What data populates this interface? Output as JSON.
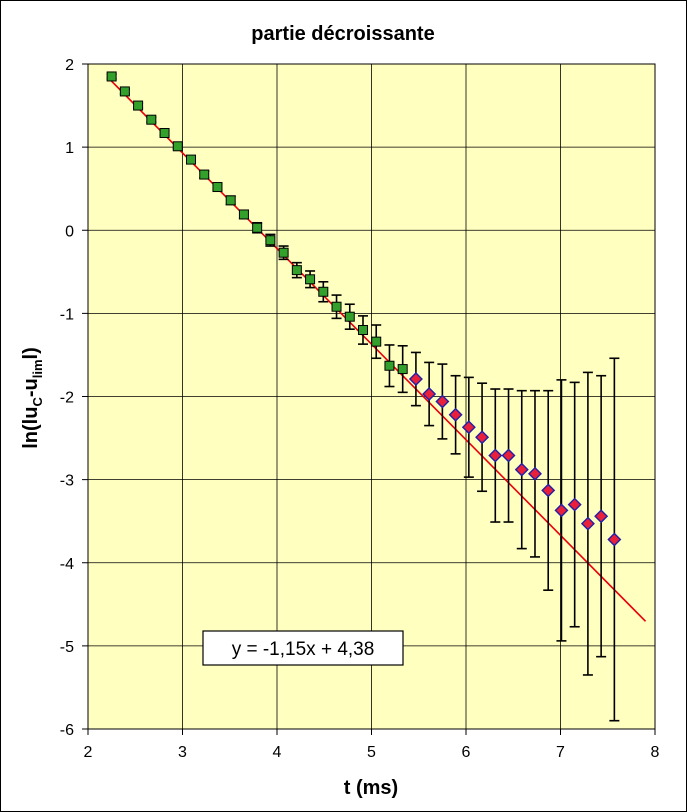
{
  "chart_data": {
    "type": "scatter",
    "title": "partie décroissante",
    "xlabel": "t  (ms)",
    "ylabel": {
      "prefix": "ln(lu",
      "sub1": "C",
      "mid": "-u",
      "sub2": "lim",
      "suffix": "l)"
    },
    "xlim": [
      2,
      8
    ],
    "ylim": [
      -6,
      2
    ],
    "xticks": [
      "2",
      "3",
      "4",
      "5",
      "6",
      "7",
      "8"
    ],
    "yticks": [
      "2",
      "1",
      "0",
      "-1",
      "-2",
      "-3",
      "-4",
      "-5",
      "-6"
    ],
    "grid": true,
    "plot_background": "#ffffc0",
    "series": [
      {
        "marker": "square",
        "color": "#33a02c",
        "points": [
          {
            "x": 2.25,
            "y": 1.85,
            "err": 0.03
          },
          {
            "x": 2.39,
            "y": 1.67,
            "err": 0.03
          },
          {
            "x": 2.53,
            "y": 1.5,
            "err": 0.03
          },
          {
            "x": 2.67,
            "y": 1.33,
            "err": 0.03
          },
          {
            "x": 2.81,
            "y": 1.17,
            "err": 0.03
          },
          {
            "x": 2.95,
            "y": 1.01,
            "err": 0.03
          },
          {
            "x": 3.09,
            "y": 0.85,
            "err": 0.04
          },
          {
            "x": 3.23,
            "y": 0.67,
            "err": 0.04
          },
          {
            "x": 3.37,
            "y": 0.52,
            "err": 0.04
          },
          {
            "x": 3.51,
            "y": 0.36,
            "err": 0.05
          },
          {
            "x": 3.65,
            "y": 0.19,
            "err": 0.05
          },
          {
            "x": 3.79,
            "y": 0.03,
            "err": 0.06
          },
          {
            "x": 3.93,
            "y": -0.12,
            "err": 0.07
          },
          {
            "x": 4.07,
            "y": -0.27,
            "err": 0.08
          },
          {
            "x": 4.21,
            "y": -0.48,
            "err": 0.09
          },
          {
            "x": 4.35,
            "y": -0.59,
            "err": 0.1
          },
          {
            "x": 4.49,
            "y": -0.74,
            "err": 0.12
          },
          {
            "x": 4.63,
            "y": -0.92,
            "err": 0.14
          },
          {
            "x": 4.77,
            "y": -1.04,
            "err": 0.15
          },
          {
            "x": 4.91,
            "y": -1.2,
            "err": 0.17
          },
          {
            "x": 5.05,
            "y": -1.34,
            "err": 0.2
          },
          {
            "x": 5.19,
            "y": -1.63,
            "err": 0.25
          },
          {
            "x": 5.33,
            "y": -1.67,
            "err": 0.28
          }
        ]
      },
      {
        "marker": "diamond",
        "color": "#e8203a",
        "points": [
          {
            "x": 5.47,
            "y": -1.79,
            "err": 0.32
          },
          {
            "x": 5.61,
            "y": -1.97,
            "err": 0.38
          },
          {
            "x": 5.75,
            "y": -2.06,
            "err": 0.45
          },
          {
            "x": 5.89,
            "y": -2.22,
            "err": 0.47
          },
          {
            "x": 6.03,
            "y": -2.37,
            "err": 0.6
          },
          {
            "x": 6.17,
            "y": -2.49,
            "err": 0.65
          },
          {
            "x": 6.31,
            "y": -2.71,
            "err": 0.8
          },
          {
            "x": 6.45,
            "y": -2.71,
            "err": 0.8
          },
          {
            "x": 6.59,
            "y": -2.88,
            "err": 0.95
          },
          {
            "x": 6.73,
            "y": -2.93,
            "err": 1.0
          },
          {
            "x": 6.87,
            "y": -3.13,
            "err": 1.2
          },
          {
            "x": 7.01,
            "y": -3.37,
            "err": 1.57
          },
          {
            "x": 7.15,
            "y": -3.3,
            "err": 1.47
          },
          {
            "x": 7.29,
            "y": -3.53,
            "err": 1.82
          },
          {
            "x": 7.43,
            "y": -3.44,
            "err": 1.69
          },
          {
            "x": 7.57,
            "y": -3.72,
            "err": 2.18
          }
        ]
      }
    ],
    "fit": {
      "slope": -1.15,
      "intercept": 4.38,
      "x_from": 2.2,
      "x_to": 7.9,
      "color": "#e8000b"
    },
    "annotation": "y = -1,15x + 4,38"
  }
}
